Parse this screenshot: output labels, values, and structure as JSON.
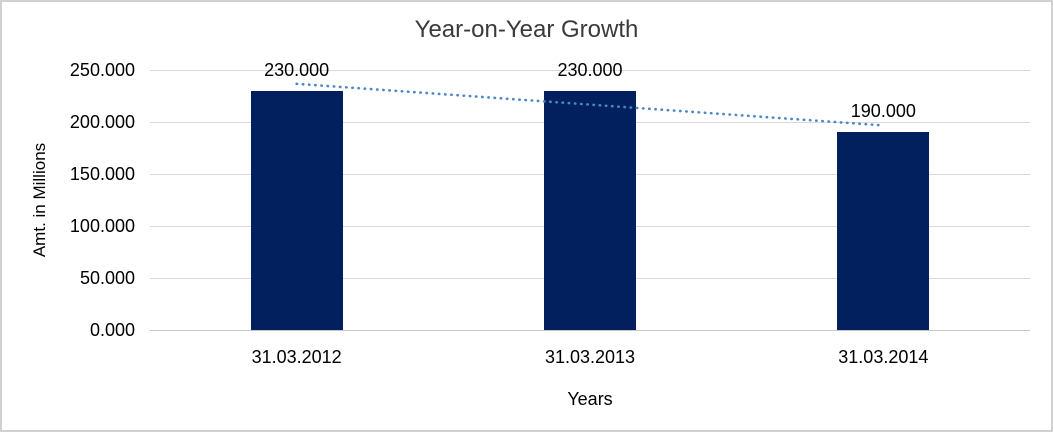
{
  "window": {
    "background_color": "#ffffff",
    "border_color": "#d0d0d0"
  },
  "chart_data": {
    "type": "bar",
    "title": "Year-on-Year Growth",
    "xlabel": "Years",
    "ylabel": "Amt. in Millions",
    "categories": [
      "31.03.2012",
      "31.03.2013",
      "31.03.2014"
    ],
    "values": [
      230,
      230,
      190
    ],
    "data_labels": [
      "230.000",
      "230.000",
      "190.000"
    ],
    "ylim": [
      0,
      250
    ],
    "y_ticks": [
      {
        "value": 0,
        "label": "0.000"
      },
      {
        "value": 50,
        "label": "50.000"
      },
      {
        "value": 100,
        "label": "100.000"
      },
      {
        "value": 150,
        "label": "150.000"
      },
      {
        "value": 200,
        "label": "200.000"
      },
      {
        "value": 250,
        "label": "250.000"
      }
    ],
    "grid": true,
    "legend_position": "none",
    "bar_color": "#02205e",
    "gridline_color": "#d9d9d9",
    "trendline": {
      "type": "linear",
      "style": "dotted",
      "color": "#4a86c8",
      "start_value": 236.7,
      "end_value": 196.7
    }
  }
}
